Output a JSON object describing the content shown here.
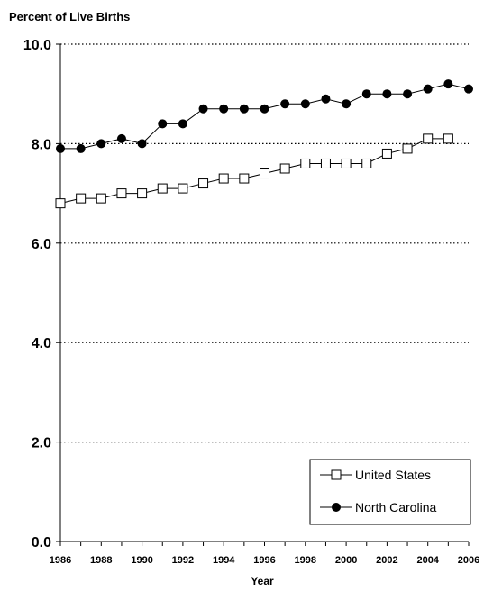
{
  "chart_data": {
    "type": "line",
    "title": "",
    "ylabel": "Percent of Live Births",
    "xlabel": "Year",
    "ylim": [
      0,
      10
    ],
    "y_ticks": [
      "0.0",
      "2.0",
      "4.0",
      "6.0",
      "8.0",
      "10.0"
    ],
    "y_tick_values": [
      0,
      2,
      4,
      6,
      8,
      10
    ],
    "x_ticks": [
      "1986",
      "1988",
      "1990",
      "1992",
      "1994",
      "1996",
      "1998",
      "2000",
      "2002",
      "2004",
      "2006"
    ],
    "x": [
      1986,
      1987,
      1988,
      1989,
      1990,
      1991,
      1992,
      1993,
      1994,
      1995,
      1996,
      1997,
      1998,
      1999,
      2000,
      2001,
      2002,
      2003,
      2004,
      2005,
      2006
    ],
    "grid": "horizontal dotted",
    "legend_position": "bottom-right",
    "series": [
      {
        "name": "United States",
        "marker": "open-square",
        "x": [
          1986,
          1987,
          1988,
          1989,
          1990,
          1991,
          1992,
          1993,
          1994,
          1995,
          1996,
          1997,
          1998,
          1999,
          2000,
          2001,
          2002,
          2003,
          2004,
          2005
        ],
        "values": [
          6.8,
          6.9,
          6.9,
          7.0,
          7.0,
          7.1,
          7.1,
          7.2,
          7.3,
          7.3,
          7.4,
          7.5,
          7.6,
          7.6,
          7.6,
          7.6,
          7.8,
          7.9,
          8.1,
          8.1
        ]
      },
      {
        "name": "North Carolina",
        "marker": "filled-circle",
        "x": [
          1986,
          1987,
          1988,
          1989,
          1990,
          1991,
          1992,
          1993,
          1994,
          1995,
          1996,
          1997,
          1998,
          1999,
          2000,
          2001,
          2002,
          2003,
          2004,
          2005,
          2006
        ],
        "values": [
          7.9,
          7.9,
          8.0,
          8.1,
          8.0,
          8.4,
          8.4,
          8.7,
          8.7,
          8.7,
          8.7,
          8.8,
          8.8,
          8.9,
          8.8,
          9.0,
          9.0,
          9.0,
          9.1,
          9.2,
          9.1
        ]
      }
    ]
  }
}
